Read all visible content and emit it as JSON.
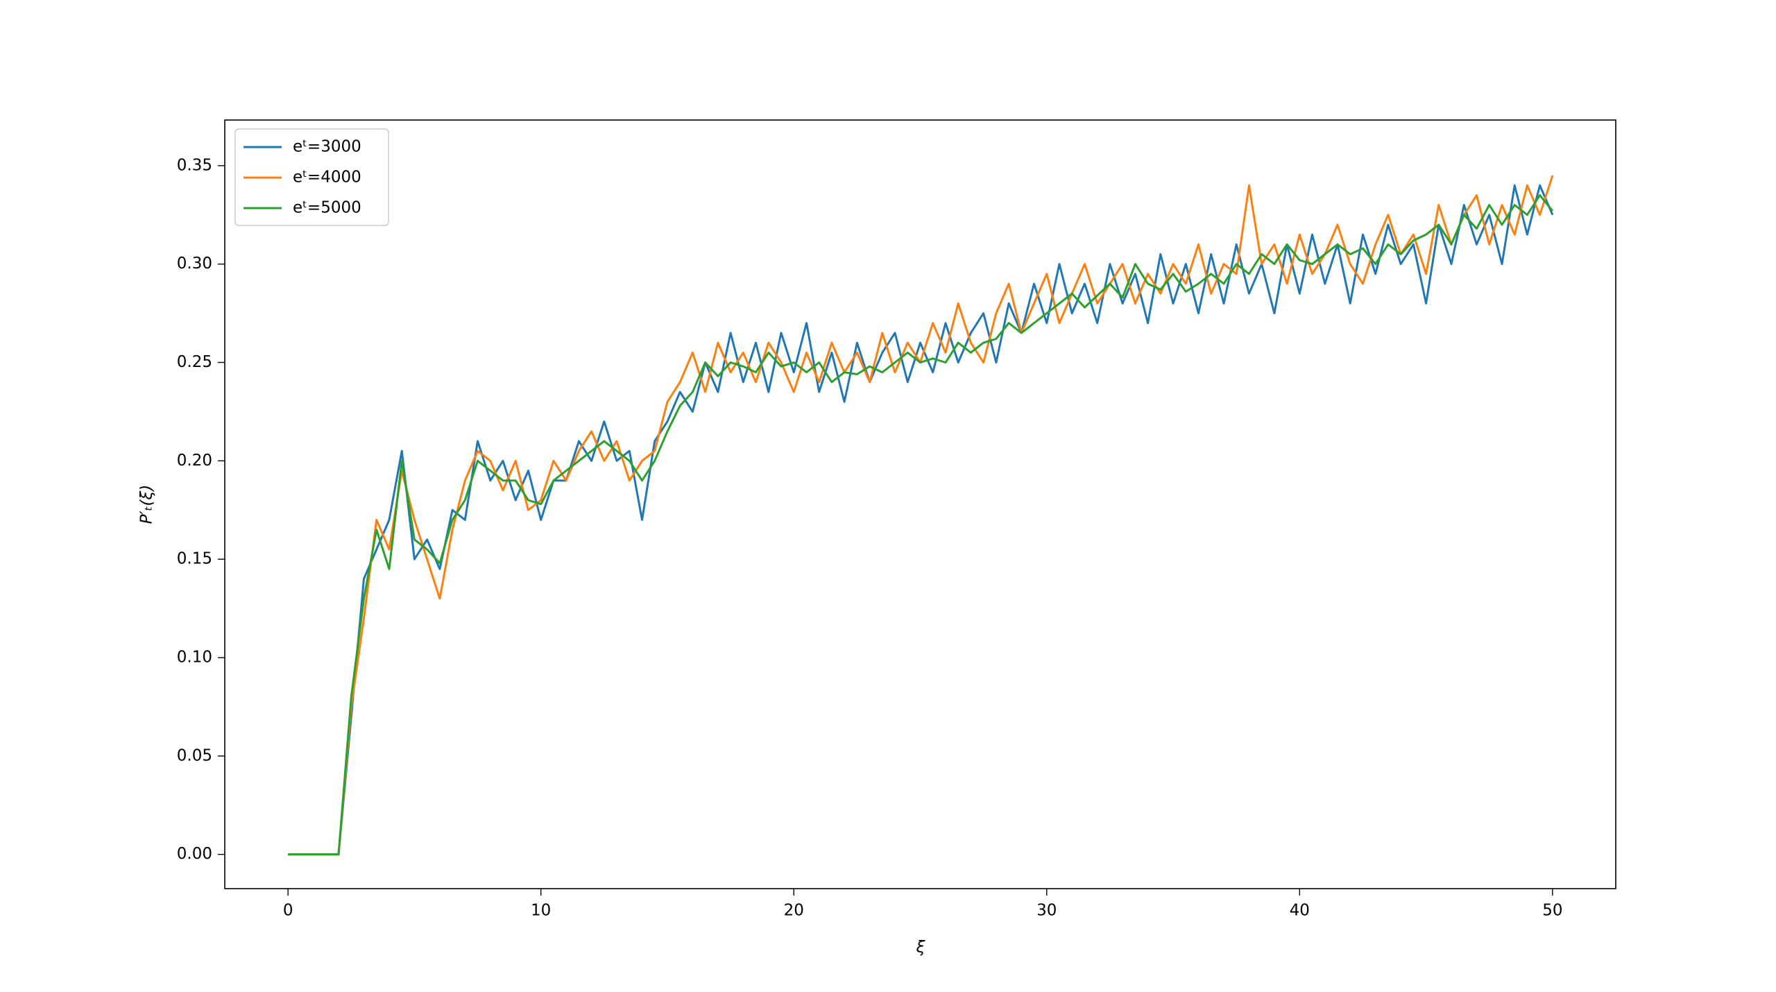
{
  "chart_data": {
    "type": "line",
    "xlabel": "ξ",
    "ylabel": "P′ₜ(ξ)",
    "x": [
      0,
      0.5,
      1,
      1.5,
      2,
      2.5,
      3,
      3.5,
      4,
      4.5,
      5,
      5.5,
      6,
      6.5,
      7,
      7.5,
      8,
      8.5,
      9,
      9.5,
      10,
      10.5,
      11,
      11.5,
      12,
      12.5,
      13,
      13.5,
      14,
      14.5,
      15,
      15.5,
      16,
      16.5,
      17,
      17.5,
      18,
      18.5,
      19,
      19.5,
      20,
      20.5,
      21,
      21.5,
      22,
      22.5,
      23,
      23.5,
      24,
      24.5,
      25,
      25.5,
      26,
      26.5,
      27,
      27.5,
      28,
      28.5,
      29,
      29.5,
      30,
      30.5,
      31,
      31.5,
      32,
      32.5,
      33,
      33.5,
      34,
      34.5,
      35,
      35.5,
      36,
      36.5,
      37,
      37.5,
      38,
      38.5,
      39,
      39.5,
      40,
      40.5,
      41,
      41.5,
      42,
      42.5,
      43,
      43.5,
      44,
      44.5,
      45,
      45.5,
      46,
      46.5,
      47,
      47.5,
      48,
      48.5,
      49,
      49.5,
      50
    ],
    "series": [
      {
        "name": "eᵗ=3000",
        "color": "#1f77b4",
        "values": [
          0,
          0,
          0,
          0,
          0,
          0.07,
          0.14,
          0.155,
          0.17,
          0.205,
          0.15,
          0.16,
          0.145,
          0.175,
          0.17,
          0.21,
          0.19,
          0.2,
          0.18,
          0.195,
          0.17,
          0.19,
          0.19,
          0.21,
          0.2,
          0.22,
          0.2,
          0.205,
          0.17,
          0.21,
          0.22,
          0.235,
          0.225,
          0.25,
          0.235,
          0.265,
          0.24,
          0.26,
          0.235,
          0.265,
          0.245,
          0.27,
          0.235,
          0.255,
          0.23,
          0.26,
          0.24,
          0.255,
          0.265,
          0.24,
          0.26,
          0.245,
          0.27,
          0.25,
          0.265,
          0.275,
          0.25,
          0.28,
          0.265,
          0.29,
          0.27,
          0.3,
          0.275,
          0.29,
          0.27,
          0.3,
          0.28,
          0.295,
          0.27,
          0.305,
          0.28,
          0.3,
          0.275,
          0.305,
          0.28,
          0.31,
          0.285,
          0.3,
          0.275,
          0.31,
          0.285,
          0.315,
          0.29,
          0.31,
          0.28,
          0.315,
          0.295,
          0.32,
          0.3,
          0.31,
          0.28,
          0.32,
          0.3,
          0.33,
          0.31,
          0.325,
          0.3,
          0.34,
          0.315,
          0.34,
          0.325
        ]
      },
      {
        "name": "eᵗ=4000",
        "color": "#ff7f0e",
        "values": [
          0,
          0,
          0,
          0,
          0,
          0.075,
          0.12,
          0.17,
          0.155,
          0.195,
          0.17,
          0.15,
          0.13,
          0.165,
          0.19,
          0.205,
          0.2,
          0.185,
          0.2,
          0.175,
          0.18,
          0.2,
          0.19,
          0.205,
          0.215,
          0.2,
          0.21,
          0.19,
          0.2,
          0.205,
          0.23,
          0.24,
          0.255,
          0.235,
          0.26,
          0.245,
          0.255,
          0.24,
          0.26,
          0.25,
          0.235,
          0.255,
          0.24,
          0.26,
          0.245,
          0.255,
          0.24,
          0.265,
          0.245,
          0.26,
          0.25,
          0.27,
          0.255,
          0.28,
          0.26,
          0.25,
          0.275,
          0.29,
          0.265,
          0.28,
          0.295,
          0.27,
          0.285,
          0.3,
          0.28,
          0.29,
          0.3,
          0.28,
          0.295,
          0.285,
          0.3,
          0.29,
          0.31,
          0.285,
          0.3,
          0.295,
          0.34,
          0.3,
          0.31,
          0.29,
          0.315,
          0.295,
          0.305,
          0.32,
          0.3,
          0.29,
          0.31,
          0.325,
          0.305,
          0.315,
          0.295,
          0.33,
          0.31,
          0.325,
          0.335,
          0.31,
          0.33,
          0.315,
          0.34,
          0.325,
          0.345
        ]
      },
      {
        "name": "eᵗ=5000",
        "color": "#2ca02c",
        "values": [
          0,
          0,
          0,
          0,
          0,
          0.08,
          0.13,
          0.165,
          0.145,
          0.2,
          0.16,
          0.155,
          0.148,
          0.17,
          0.18,
          0.2,
          0.195,
          0.19,
          0.19,
          0.18,
          0.178,
          0.19,
          0.195,
          0.2,
          0.205,
          0.21,
          0.205,
          0.2,
          0.19,
          0.2,
          0.215,
          0.228,
          0.235,
          0.25,
          0.243,
          0.25,
          0.248,
          0.245,
          0.255,
          0.248,
          0.25,
          0.245,
          0.25,
          0.24,
          0.245,
          0.244,
          0.248,
          0.245,
          0.25,
          0.255,
          0.25,
          0.252,
          0.25,
          0.26,
          0.255,
          0.26,
          0.262,
          0.27,
          0.265,
          0.27,
          0.275,
          0.28,
          0.285,
          0.278,
          0.284,
          0.29,
          0.283,
          0.3,
          0.29,
          0.287,
          0.295,
          0.286,
          0.29,
          0.295,
          0.29,
          0.3,
          0.295,
          0.305,
          0.3,
          0.31,
          0.302,
          0.3,
          0.305,
          0.31,
          0.305,
          0.308,
          0.3,
          0.31,
          0.305,
          0.312,
          0.315,
          0.32,
          0.31,
          0.325,
          0.318,
          0.33,
          0.32,
          0.33,
          0.325,
          0.335,
          0.327
        ]
      }
    ],
    "xlim": [
      -2.5,
      52.5
    ],
    "xticks": [
      0,
      10,
      20,
      30,
      40,
      50
    ],
    "ylim": [
      -0.0174,
      0.3732
    ],
    "yticks": [
      {
        "value": 0,
        "label": "0.00"
      },
      {
        "value": 0.05,
        "label": "0.05"
      },
      {
        "value": 0.1,
        "label": "0.10"
      },
      {
        "value": 0.15,
        "label": "0.15"
      },
      {
        "value": 0.2,
        "label": "0.20"
      },
      {
        "value": 0.25,
        "label": "0.25"
      },
      {
        "value": 0.3,
        "label": "0.30"
      },
      {
        "value": 0.35,
        "label": "0.35"
      }
    ],
    "grid": false,
    "legend": "upper left"
  }
}
